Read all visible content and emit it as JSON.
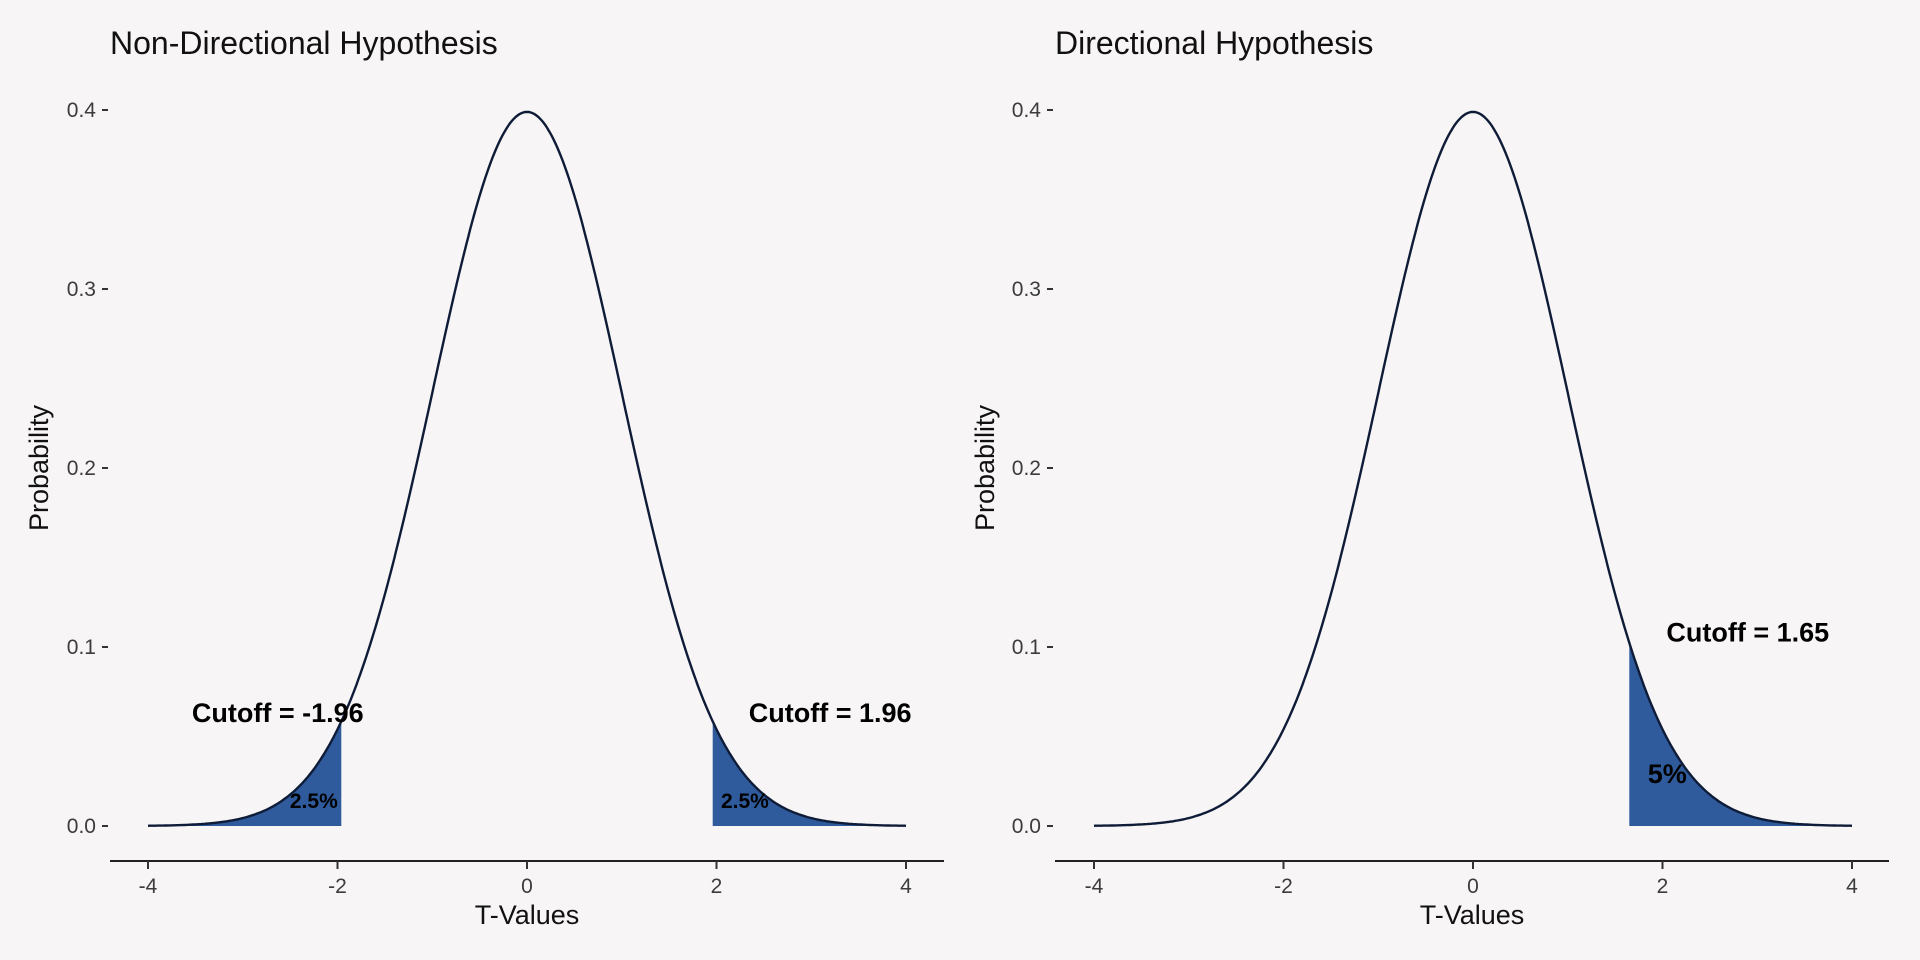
{
  "chart_data": [
    {
      "type": "area",
      "title": "Non-Directional Hypothesis",
      "xlabel": "T-Values",
      "ylabel": "Probability",
      "xlim": [
        -4,
        4
      ],
      "ylim": [
        0,
        0.4
      ],
      "x_ticks": [
        -4,
        -2,
        0,
        2,
        4
      ],
      "x_tick_labels": [
        "-4",
        "-2",
        "0",
        "2",
        "4"
      ],
      "y_ticks": [
        0,
        0.1,
        0.2,
        0.3,
        0.4
      ],
      "y_tick_labels": [
        "0.0",
        "0.1",
        "0.2",
        "0.3",
        "0.4"
      ],
      "grid": false,
      "legend": "none",
      "curve": {
        "distribution": "standard normal density",
        "x": [
          -4,
          -3.5,
          -3,
          -2.5,
          -1.96,
          -1.5,
          -1,
          -0.5,
          0,
          0.5,
          1,
          1.5,
          1.96,
          2.5,
          3,
          3.5,
          4
        ],
        "y": [
          0.0001,
          0.0009,
          0.0044,
          0.0175,
          0.0584,
          0.1295,
          0.242,
          0.3521,
          0.3989,
          0.3521,
          0.242,
          0.1295,
          0.0584,
          0.0175,
          0.0044,
          0.0009,
          0.0001
        ],
        "color": "#0f1c38"
      },
      "shaded_regions": [
        {
          "from": -4,
          "to": -1.96,
          "color": "#2f5b9c",
          "label": "2.5%"
        },
        {
          "from": 1.96,
          "to": 4,
          "color": "#2f5b9c",
          "label": "2.5%"
        }
      ],
      "annotations": [
        {
          "text": "Cutoff = -1.96",
          "x": -2.63,
          "y": 0.058,
          "size": "large"
        },
        {
          "text": "Cutoff = 1.96",
          "x": 3.2,
          "y": 0.058,
          "size": "large"
        },
        {
          "text": "2.5%",
          "x": -2.25,
          "y": 0.01,
          "size": "small"
        },
        {
          "text": "2.5%",
          "x": 2.3,
          "y": 0.01,
          "size": "small"
        }
      ]
    },
    {
      "type": "area",
      "title": "Directional Hypothesis",
      "xlabel": "T-Values",
      "ylabel": "Probability",
      "xlim": [
        -4,
        4
      ],
      "ylim": [
        0,
        0.4
      ],
      "x_ticks": [
        -4,
        -2,
        0,
        2,
        4
      ],
      "x_tick_labels": [
        "-4",
        "-2",
        "0",
        "2",
        "4"
      ],
      "y_ticks": [
        0,
        0.1,
        0.2,
        0.3,
        0.4
      ],
      "y_tick_labels": [
        "0.0",
        "0.1",
        "0.2",
        "0.3",
        "0.4"
      ],
      "grid": false,
      "legend": "none",
      "curve": {
        "distribution": "standard normal density",
        "x": [
          -4,
          -3.5,
          -3,
          -2.5,
          -2,
          -1.5,
          -1,
          -0.5,
          0,
          0.5,
          1,
          1.5,
          1.65,
          2,
          2.5,
          3,
          3.5,
          4
        ],
        "y": [
          0.0001,
          0.0009,
          0.0044,
          0.0175,
          0.054,
          0.1295,
          0.242,
          0.3521,
          0.3989,
          0.3521,
          0.242,
          0.1295,
          0.1023,
          0.054,
          0.0175,
          0.0044,
          0.0009,
          0.0001
        ],
        "color": "#0f1c38"
      },
      "shaded_regions": [
        {
          "from": 1.65,
          "to": 4,
          "color": "#2f5b9c",
          "label": "5%"
        }
      ],
      "annotations": [
        {
          "text": "Cutoff = 1.65",
          "x": 2.9,
          "y": 0.103,
          "size": "large"
        },
        {
          "text": "5%",
          "x": 2.05,
          "y": 0.024,
          "size": "large"
        }
      ]
    }
  ]
}
